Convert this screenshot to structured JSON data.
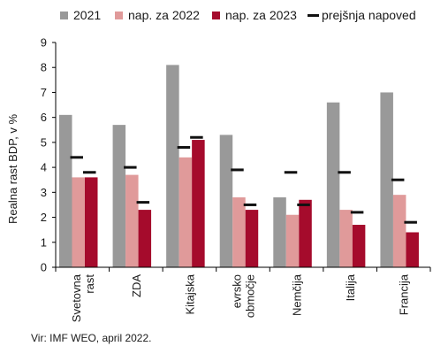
{
  "chart_data": {
    "type": "bar",
    "title": "",
    "ylabel": "Realna rast BDP, v %",
    "ylim": [
      0,
      9
    ],
    "yticks": [
      0,
      1,
      2,
      3,
      4,
      5,
      6,
      7,
      8,
      9
    ],
    "grid": false,
    "legend_position": "top",
    "categories": [
      [
        "Svetovna",
        "rast"
      ],
      [
        "ZDA"
      ],
      [
        "Kitajska"
      ],
      [
        "evrsko",
        "območje"
      ],
      [
        "Nemčija"
      ],
      [
        "Italija"
      ],
      [
        "Francija"
      ]
    ],
    "series": [
      {
        "name": "2021",
        "color": "#999999",
        "values": [
          6.1,
          5.7,
          8.1,
          5.3,
          2.8,
          6.6,
          7.0
        ]
      },
      {
        "name": "nap. za 2022",
        "color": "#e09a9a",
        "values": [
          3.6,
          3.7,
          4.4,
          2.8,
          2.1,
          2.3,
          2.9
        ]
      },
      {
        "name": "nap. za 2023",
        "color": "#a50b2c",
        "values": [
          3.6,
          2.3,
          5.1,
          2.3,
          2.7,
          1.7,
          1.4
        ]
      }
    ],
    "markers": {
      "name": "prejšnja napoved",
      "color": "#111111",
      "values_2022": [
        4.4,
        4.0,
        4.8,
        3.9,
        3.8,
        3.8,
        3.5
      ],
      "values_2023": [
        3.8,
        2.6,
        5.2,
        2.5,
        2.5,
        2.2,
        1.8
      ]
    }
  },
  "source": "Vir: IMF WEO, april 2022."
}
